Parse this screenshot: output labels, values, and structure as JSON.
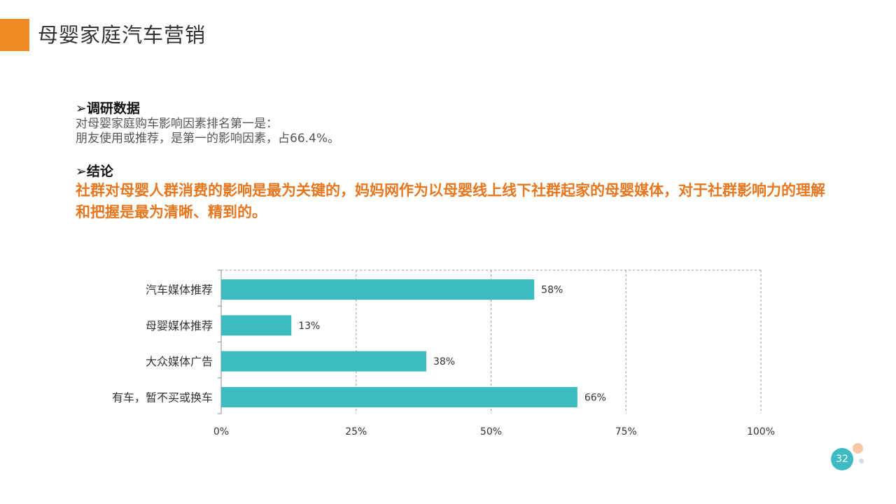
{
  "header": {
    "title": "母婴家庭汽车营销"
  },
  "survey": {
    "heading": "➢调研数据",
    "line1": "对母婴家庭购车影响因素排名第一是：",
    "line2": "朋友使用或推荐，是第一的影响因素，占66.4%。"
  },
  "conclusion": {
    "heading": "➢结论",
    "text": "社群对母婴人群消费的影响是最为关键的，妈妈网作为以母婴线上线下社群起家的母婴媒体，对于社群影响力的理解和把握是最为清晰、精到的。"
  },
  "chart_data": {
    "type": "bar",
    "orientation": "horizontal",
    "categories": [
      "汽车媒体推荐",
      "母婴媒体推荐",
      "大众媒体广告",
      "有车，暂不买或换车"
    ],
    "values": [
      58,
      13,
      38,
      66
    ],
    "data_labels": [
      "58%",
      "13%",
      "38%",
      "66%"
    ],
    "xlim": [
      0,
      100
    ],
    "x_ticks": [
      0,
      25,
      50,
      75,
      100
    ],
    "x_tick_labels": [
      "0%",
      "25%",
      "50%",
      "75%",
      "100%"
    ],
    "grid": "vertical dashed",
    "bar_color": "#3dbbc1",
    "title": "",
    "xlabel": "",
    "ylabel": ""
  },
  "footer": {
    "page_number": "32"
  },
  "colors": {
    "accent": "#f08a24",
    "conclusion": "#e8761f",
    "bar": "#3dbbc1"
  }
}
